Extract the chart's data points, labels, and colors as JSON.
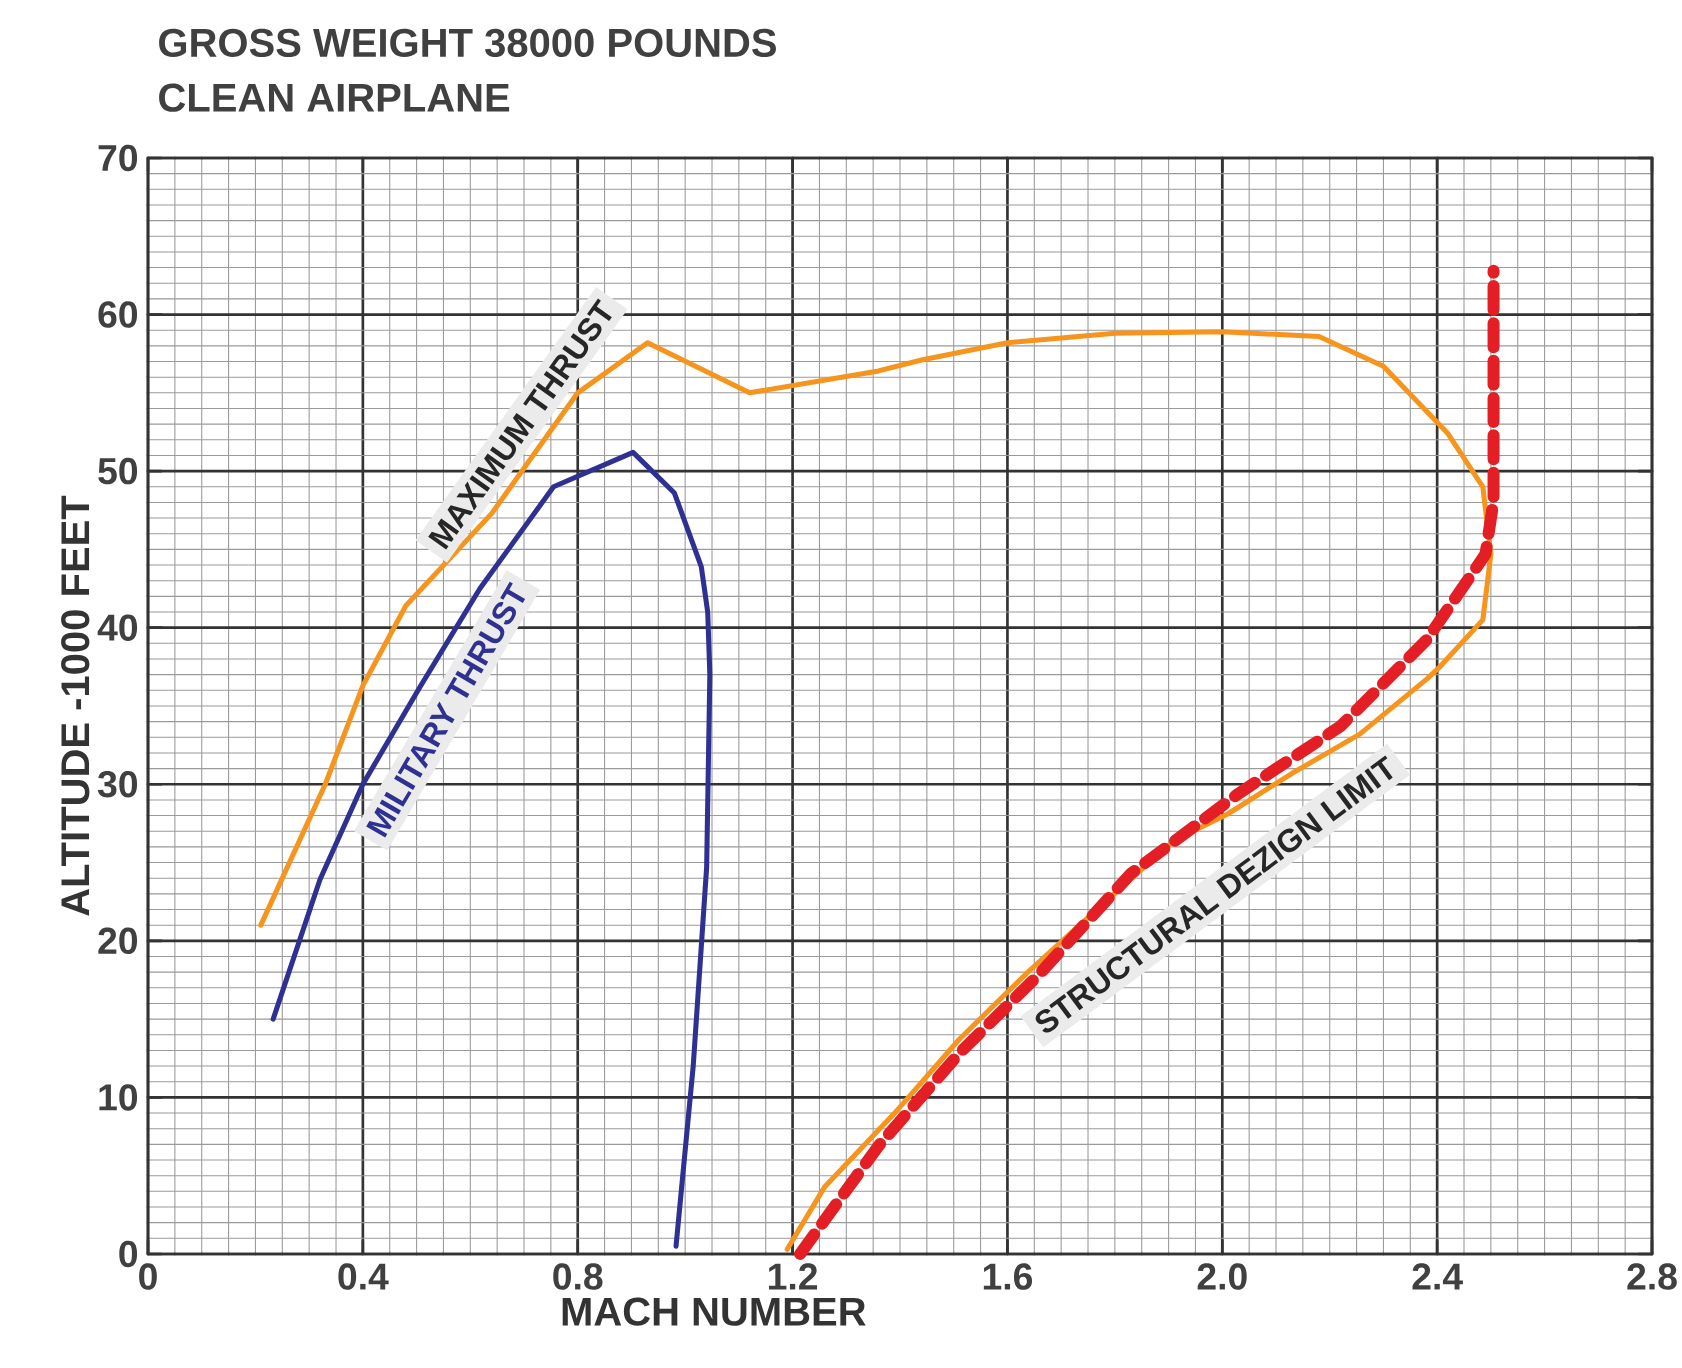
{
  "chart_data": {
    "type": "line",
    "title": "GROSS WEIGHT 38000 POUNDS",
    "subtitle": "CLEAN AIRPLANE",
    "xlabel": "MACH NUMBER",
    "ylabel": "ALTITUDE -1000 FEET",
    "xlim": [
      0,
      2.8
    ],
    "ylim": [
      0,
      70
    ],
    "xticks": [
      0,
      0.4,
      0.8,
      1.2,
      1.6,
      {
        "value": 2,
        "label": "2.0"
      },
      2.4,
      2.8
    ],
    "yticks": [
      0,
      10,
      20,
      30,
      40,
      50,
      60,
      70
    ],
    "grid": true,
    "marker": "none",
    "series": [
      {
        "name": "MAXIMUM THRUST",
        "color": "#f7941d",
        "line_style": "solid",
        "x": [
          0.21,
          0.33,
          0.4,
          0.48,
          0.64,
          0.8,
          0.93,
          1.12,
          1.36,
          1.44,
          1.6,
          1.8,
          2.0,
          2.18,
          2.3,
          2.42,
          2.485,
          2.5,
          2.485,
          2.405,
          2.38,
          2.256,
          2.13,
          2.01,
          1.91,
          1.76,
          1.635,
          1.51,
          1.39,
          1.26,
          1.19
        ],
        "values": [
          21.0,
          30.0,
          36.3,
          41.4,
          47.3,
          55.0,
          58.2,
          55.0,
          56.4,
          57.1,
          58.2,
          58.8,
          58.9,
          58.6,
          56.7,
          52.4,
          49.0,
          44.7,
          40.5,
          37.5,
          36.7,
          33.2,
          30.7,
          28.1,
          26.4,
          21.8,
          17.9,
          13.7,
          9.0,
          4.3,
          0.3
        ]
      },
      {
        "name": "MILITARY THRUST",
        "color": "#2e3192",
        "line_style": "solid",
        "x": [
          0.233,
          0.32,
          0.4,
          0.506,
          0.618,
          0.755,
          0.903,
          0.98,
          1.03,
          1.042,
          1.046,
          1.04,
          1.015,
          0.983
        ],
        "values": [
          15.0,
          23.9,
          30.0,
          36.2,
          42.5,
          49.0,
          51.2,
          48.6,
          43.9,
          41.0,
          37.0,
          24.7,
          12.0,
          0.5
        ]
      },
      {
        "name": "STRUCTURAL DEZIGN LIMIT",
        "color": "#e31e24",
        "line_style": "dashed",
        "x": [
          1.214,
          1.36,
          1.51,
          1.66,
          1.83,
          2.03,
          2.22,
          2.38,
          2.49,
          2.505,
          2.505
        ],
        "values": [
          0.0,
          6.9,
          12.8,
          17.9,
          24.3,
          29.4,
          33.7,
          39.2,
          44.7,
          48.1,
          62.8
        ]
      }
    ]
  }
}
